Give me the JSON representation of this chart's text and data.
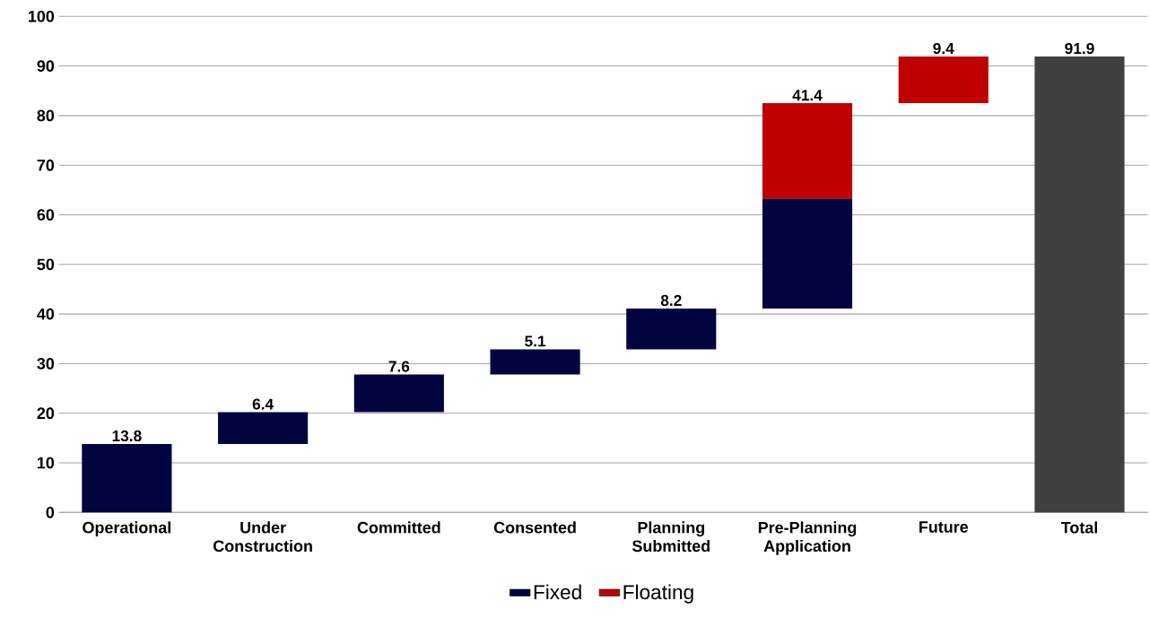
{
  "chart_data": {
    "type": "bar",
    "categories": [
      "Operational",
      "Under Construction",
      "Committed",
      "Consented",
      "Planning Submitted",
      "Pre-Planning Application",
      "Future",
      "Total"
    ],
    "series": [
      {
        "name": "Fixed",
        "color": "#03033f",
        "values": [
          13.8,
          6.4,
          7.6,
          5.1,
          8.2,
          22.2,
          null,
          null
        ],
        "base": [
          0,
          13.8,
          20.2,
          27.8,
          32.9,
          41.1,
          null,
          null
        ]
      },
      {
        "name": "Floating",
        "color": "#c00000",
        "values": [
          null,
          null,
          null,
          null,
          null,
          19.2,
          9.4,
          null
        ],
        "base": [
          null,
          null,
          null,
          null,
          null,
          63.3,
          82.5,
          null
        ]
      },
      {
        "color": "#404040",
        "values": [
          null,
          null,
          null,
          null,
          null,
          null,
          null,
          91.9
        ],
        "base": [
          null,
          null,
          null,
          null,
          null,
          null,
          null,
          0
        ]
      }
    ],
    "totals": [
      "13.8",
      "6.4",
      "7.6",
      "5.1",
      "8.2",
      "41.4",
      "9.4",
      "91.9"
    ],
    "ylim": [
      0,
      100
    ],
    "yticks": [
      0,
      10,
      20,
      30,
      40,
      50,
      60,
      70,
      80,
      90,
      100
    ],
    "grid": "y",
    "legend": "bottom"
  }
}
